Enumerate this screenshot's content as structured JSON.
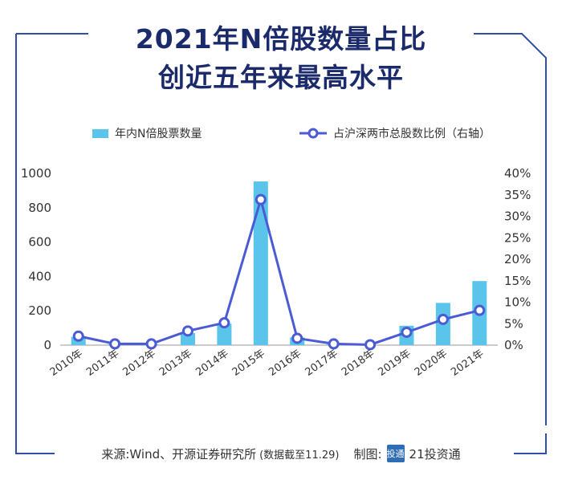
{
  "title_line1": "2021年N倍股数量占比",
  "title_line2": "创近五年来最高水平",
  "source_label": "来源:Wind、开源证券研究所",
  "source_note": "(数据截至11.29)",
  "made_by_label": "制图:",
  "made_by_org": "21投资通",
  "logo_text": "投通",
  "colors": {
    "bar": "#5bc4ea",
    "line": "#4a5bd4",
    "frame": "#2f4fa8",
    "title": "#1b2a6b"
  },
  "chart_data": {
    "type": "bar",
    "categories": [
      "2010年",
      "2011年",
      "2012年",
      "2013年",
      "2014年",
      "2015年",
      "2016年",
      "2017年",
      "2018年",
      "2019年",
      "2020年",
      "2021年"
    ],
    "series": [
      {
        "name": "年内N倍股票数量",
        "type": "bar",
        "axis": "left",
        "values": [
          48,
          5,
          5,
          70,
          125,
          953,
          45,
          5,
          2,
          113,
          246,
          373
        ]
      },
      {
        "name": "占沪深两市总股数比例（右轴）",
        "type": "line",
        "axis": "right",
        "values": [
          2.1,
          0.3,
          0.3,
          3.3,
          5.2,
          33.9,
          1.6,
          0.3,
          0.1,
          3.0,
          6.0,
          8.1
        ]
      }
    ],
    "y_left": {
      "lim": [
        0,
        1000
      ],
      "ticks": [
        0,
        200,
        400,
        600,
        800,
        1000
      ]
    },
    "y_right": {
      "lim": [
        0,
        40
      ],
      "ticks": [
        "0%",
        "5%",
        "10%",
        "15%",
        "20%",
        "25%",
        "30%",
        "35%",
        "40%"
      ]
    },
    "legend": "top"
  }
}
